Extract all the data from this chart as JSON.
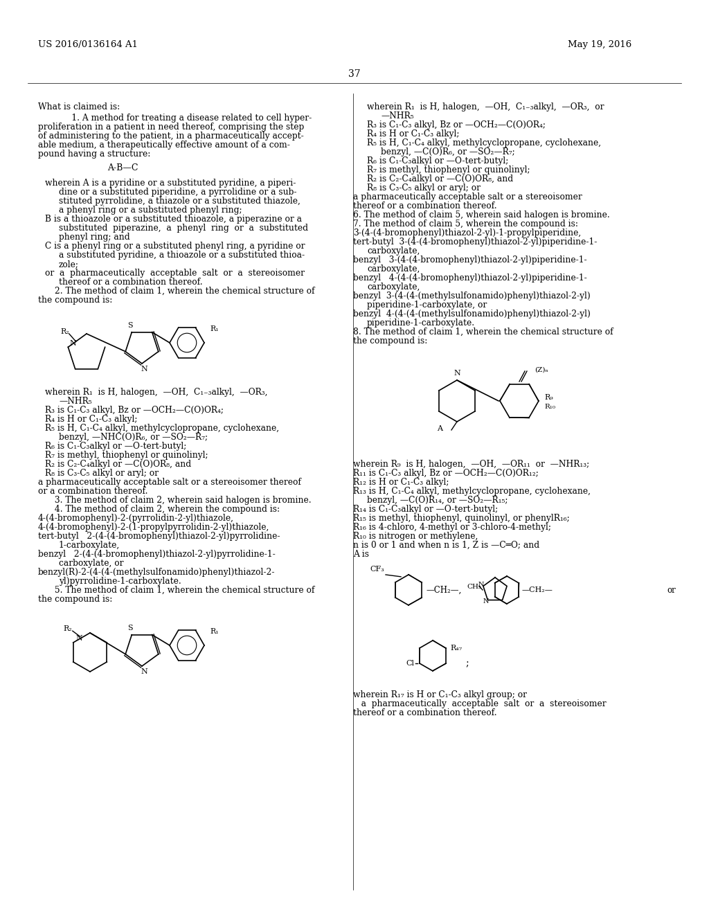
{
  "page_number": "37",
  "patent_number": "US 2016/0136164 A1",
  "patent_date": "May 19, 2016",
  "background_color": "#ffffff",
  "text_color": "#000000"
}
